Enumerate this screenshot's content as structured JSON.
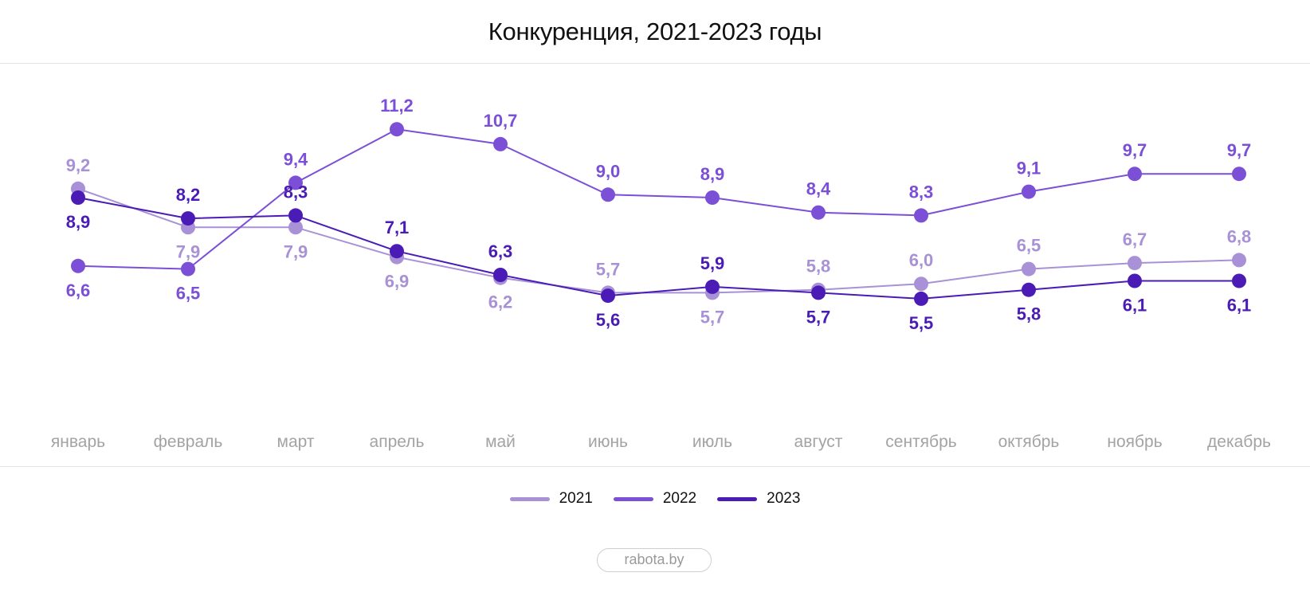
{
  "title": "Конкуренция, 2021-2023 годы",
  "source_label": "rabota.by",
  "chart_data": {
    "type": "line",
    "title": "Конкуренция, 2021-2023 годы",
    "categories": [
      "январь",
      "февраль",
      "март",
      "апрель",
      "май",
      "июнь",
      "июль",
      "август",
      "сентябрь",
      "октябрь",
      "ноябрь",
      "декабрь"
    ],
    "series": [
      {
        "name": "2021",
        "color": "#a891d6",
        "values": [
          9.2,
          7.9,
          7.9,
          6.9,
          6.2,
          5.7,
          5.7,
          5.8,
          6.0,
          6.5,
          6.7,
          6.8
        ],
        "labels": [
          "9,2",
          "7,9",
          "7,9",
          "6,9",
          "6,2",
          "5,7",
          "5,7",
          "5,8",
          "6,0",
          "6,5",
          "6,7",
          "6,8"
        ],
        "label_side": [
          "above",
          "below",
          "below",
          "below",
          "below",
          "above",
          "below",
          "above",
          "above",
          "above",
          "above",
          "above"
        ]
      },
      {
        "name": "2022",
        "color": "#7b4fd6",
        "values": [
          6.6,
          6.5,
          9.4,
          11.2,
          10.7,
          9.0,
          8.9,
          8.4,
          8.3,
          9.1,
          9.7,
          9.7
        ],
        "labels": [
          "6,6",
          "6,5",
          "9,4",
          "11,2",
          "10,7",
          "9,0",
          "8,9",
          "8,4",
          "8,3",
          "9,1",
          "9,7",
          "9,7"
        ],
        "label_side": [
          "below",
          "below",
          "above",
          "above",
          "above",
          "above",
          "above",
          "above",
          "above",
          "above",
          "above",
          "above"
        ]
      },
      {
        "name": "2023",
        "color": "#4a1cb5",
        "values": [
          8.9,
          8.2,
          8.3,
          7.1,
          6.3,
          5.6,
          5.9,
          5.7,
          5.5,
          5.8,
          6.1,
          6.1
        ],
        "labels": [
          "8,9",
          "8,2",
          "8,3",
          "7,1",
          "6,3",
          "5,6",
          "5,9",
          "5,7",
          "5,5",
          "5,8",
          "6,1",
          "6,1"
        ],
        "label_side": [
          "below",
          "above",
          "above",
          "above",
          "above",
          "below",
          "above",
          "below",
          "below",
          "below",
          "below",
          "below"
        ]
      }
    ],
    "xlabel": "",
    "ylabel": "",
    "grid": false,
    "legend_position": "bottom-center"
  }
}
